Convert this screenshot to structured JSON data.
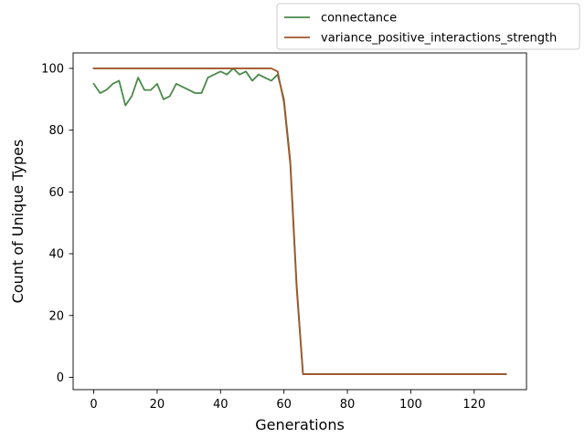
{
  "chart_data": {
    "type": "line",
    "title": "",
    "xlabel": "Generations",
    "ylabel": "Count of Unique Types",
    "xlim": [
      -6.5,
      136.5
    ],
    "ylim": [
      -4,
      105
    ],
    "xticks": [
      0,
      20,
      40,
      60,
      80,
      100,
      120
    ],
    "yticks": [
      0,
      20,
      40,
      60,
      80,
      100
    ],
    "grid": false,
    "legend_position": "top-right",
    "series": [
      {
        "name": "connectance",
        "color": "#4a8a4a",
        "points": [
          [
            0,
            95
          ],
          [
            2,
            92
          ],
          [
            4,
            93
          ],
          [
            6,
            95
          ],
          [
            8,
            96
          ],
          [
            10,
            88
          ],
          [
            12,
            91
          ],
          [
            14,
            97
          ],
          [
            16,
            93
          ],
          [
            18,
            93
          ],
          [
            20,
            95
          ],
          [
            22,
            90
          ],
          [
            24,
            91
          ],
          [
            26,
            95
          ],
          [
            28,
            94
          ],
          [
            30,
            93
          ],
          [
            32,
            92
          ],
          [
            34,
            92
          ],
          [
            36,
            97
          ],
          [
            38,
            98
          ],
          [
            40,
            99
          ],
          [
            42,
            98
          ],
          [
            44,
            100
          ],
          [
            46,
            98
          ],
          [
            48,
            99
          ],
          [
            50,
            96
          ],
          [
            52,
            98
          ],
          [
            54,
            97
          ],
          [
            56,
            96
          ],
          [
            58,
            98
          ],
          [
            60,
            90
          ],
          [
            62,
            70
          ],
          [
            64,
            30
          ],
          [
            66,
            1
          ],
          [
            70,
            1
          ],
          [
            80,
            1
          ],
          [
            90,
            1
          ],
          [
            100,
            1
          ],
          [
            110,
            1
          ],
          [
            120,
            1
          ],
          [
            130,
            1
          ]
        ]
      },
      {
        "name": "variance_positive_interactions_strength",
        "color": "#a0562a",
        "points": [
          [
            0,
            100
          ],
          [
            10,
            100
          ],
          [
            20,
            100
          ],
          [
            30,
            100
          ],
          [
            40,
            100
          ],
          [
            50,
            100
          ],
          [
            56,
            100
          ],
          [
            58,
            99
          ],
          [
            60,
            89
          ],
          [
            62,
            69
          ],
          [
            64,
            29
          ],
          [
            66,
            1
          ],
          [
            70,
            1
          ],
          [
            80,
            1
          ],
          [
            90,
            1
          ],
          [
            100,
            1
          ],
          [
            110,
            1
          ],
          [
            120,
            1
          ],
          [
            130,
            1
          ]
        ]
      }
    ]
  }
}
